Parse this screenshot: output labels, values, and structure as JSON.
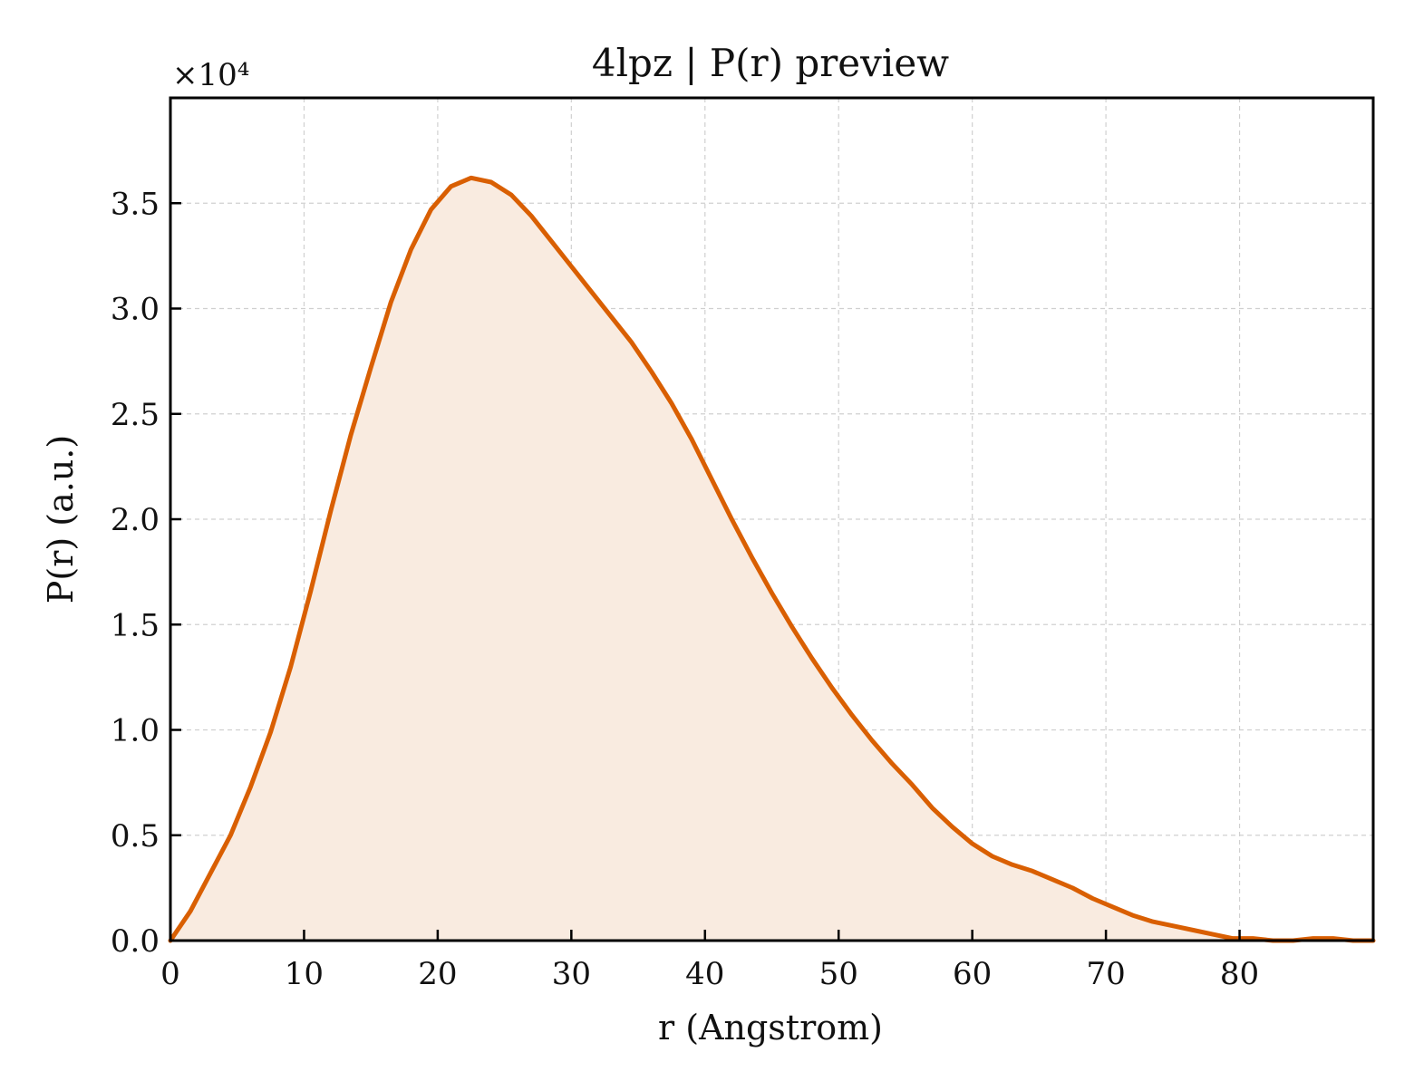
{
  "chart_data": {
    "type": "area",
    "title": "4lpz | P(r) preview",
    "xlabel": "r (Angstrom)",
    "ylabel": "P(r) (a.u.)",
    "y_multiplier": "×10⁴",
    "xlim": [
      0,
      90
    ],
    "ylim": [
      0,
      4.0
    ],
    "x_ticks": [
      "0",
      "10",
      "20",
      "30",
      "40",
      "50",
      "60",
      "70",
      "80"
    ],
    "y_ticks": [
      "0.0",
      "0.5",
      "1.0",
      "1.5",
      "2.0",
      "2.5",
      "3.0",
      "3.5"
    ],
    "x_tick_values": [
      0,
      10,
      20,
      30,
      40,
      50,
      60,
      70,
      80
    ],
    "y_tick_values": [
      0,
      0.5,
      1.0,
      1.5,
      2.0,
      2.5,
      3.0,
      3.5
    ],
    "grid": true,
    "colors": {
      "line": "#d95f02",
      "fill": "#f9ebe0",
      "grid": "#d0d0d0",
      "axis": "#000000"
    },
    "series": [
      {
        "x": [
          0,
          1.5,
          3,
          4.5,
          6,
          7.5,
          9,
          10.5,
          12,
          13.5,
          15,
          16.5,
          18,
          19.5,
          21,
          22.5,
          24,
          25.5,
          27,
          28.5,
          30,
          31.5,
          33,
          34.5,
          36,
          37.5,
          39,
          40.5,
          42,
          43.5,
          45,
          46.5,
          48,
          49.5,
          51,
          52.5,
          54,
          55.5,
          57,
          58.5,
          60,
          61.5,
          63,
          64.5,
          66,
          67.5,
          69,
          70.5,
          72,
          73.5,
          75,
          76.5,
          78,
          79.5,
          81,
          82.5,
          84,
          85.5,
          87,
          88.5,
          90
        ],
        "y": [
          0.0,
          0.14,
          0.32,
          0.5,
          0.73,
          0.99,
          1.3,
          1.66,
          2.04,
          2.4,
          2.72,
          3.03,
          3.28,
          3.47,
          3.58,
          3.62,
          3.6,
          3.54,
          3.44,
          3.32,
          3.2,
          3.08,
          2.96,
          2.84,
          2.7,
          2.55,
          2.38,
          2.19,
          2.0,
          1.82,
          1.65,
          1.49,
          1.34,
          1.2,
          1.07,
          0.95,
          0.84,
          0.74,
          0.63,
          0.54,
          0.46,
          0.4,
          0.36,
          0.33,
          0.29,
          0.25,
          0.2,
          0.16,
          0.12,
          0.09,
          0.07,
          0.05,
          0.03,
          0.01,
          0.01,
          0.0,
          0.0,
          0.01,
          0.01,
          0.0,
          0.0
        ]
      }
    ]
  }
}
